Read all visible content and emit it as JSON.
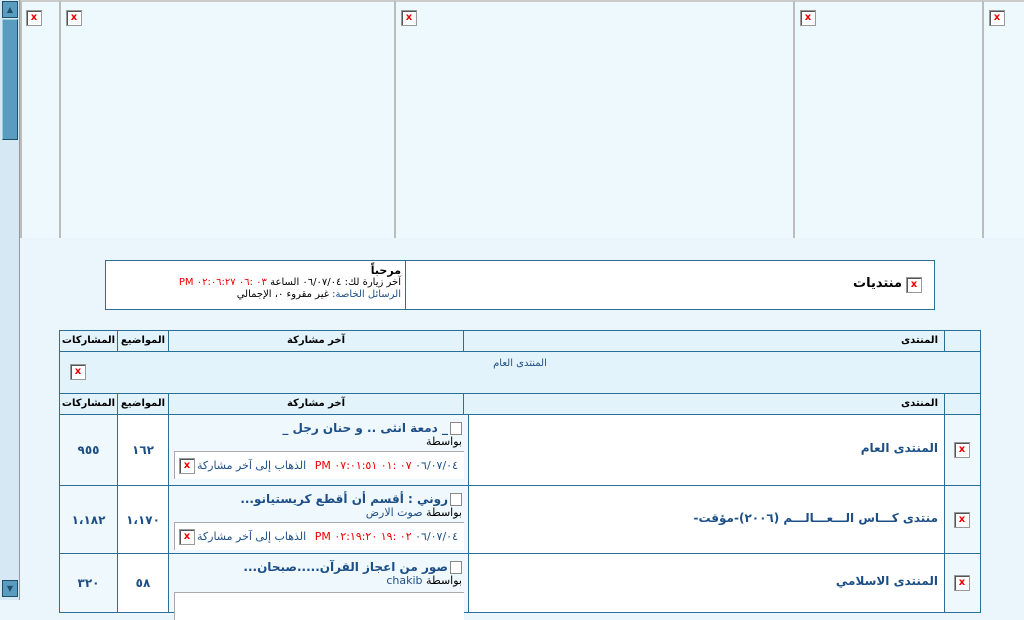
{
  "welcome": {
    "greeting": "مرحباً",
    "last_visit_label": "آخر زيارة لك",
    "last_visit_date": "٠٦/٠٧/٠٤ الساعة",
    "last_visit_time": "٠٣ :٠٦ ٠٢:٠٦:٢٧ PM",
    "pm_label": "الرسائل الخاصة:",
    "pm_value": "غير مقروء ٠، الإجمالي"
  },
  "forums_title": "منتديات",
  "headers": {
    "forum": "المنتدى",
    "last_post": "آخر مشاركة",
    "topics": "المواضيع",
    "posts": "المشاركات"
  },
  "category": "المنتدى العام",
  "rows": [
    {
      "name": "المنتدى العام",
      "post_title": "_ دمعة انثى .. و حنان رجل _",
      "by": "بواسطة",
      "author": "",
      "date": "٠٦/٠٧/٠٤",
      "time": "٠٧ :٠١ ٠٧:٠١:٥١ PM",
      "goto": "الذهاب إلى آخر مشاركة",
      "topics": "١٦٢",
      "posts": "٩٥٥"
    },
    {
      "name": "منتدى كـــاس الـــعـــالـــم (٢٠٠٦)-مؤقت-",
      "post_title": "روني : أقسم أن أقطع كريستيانو...",
      "by": "بواسطة",
      "author": "صوت الارض",
      "date": "٠٦/٠٧/٠٤",
      "time": "٠٢ :١٩ ٠٢:١٩:٢٠ PM",
      "goto": "الذهاب إلى آخر مشاركة",
      "topics": "١،١٧٠",
      "posts": "١،١٨٢"
    },
    {
      "name": "المنتدى الاسلامي",
      "post_title": "صور من اعجاز القرآن.....صبحان...",
      "by": "بواسطة",
      "author": "chakib",
      "date": "",
      "time": "",
      "goto": "",
      "topics": "٥٨",
      "posts": "٣٢٠"
    }
  ]
}
